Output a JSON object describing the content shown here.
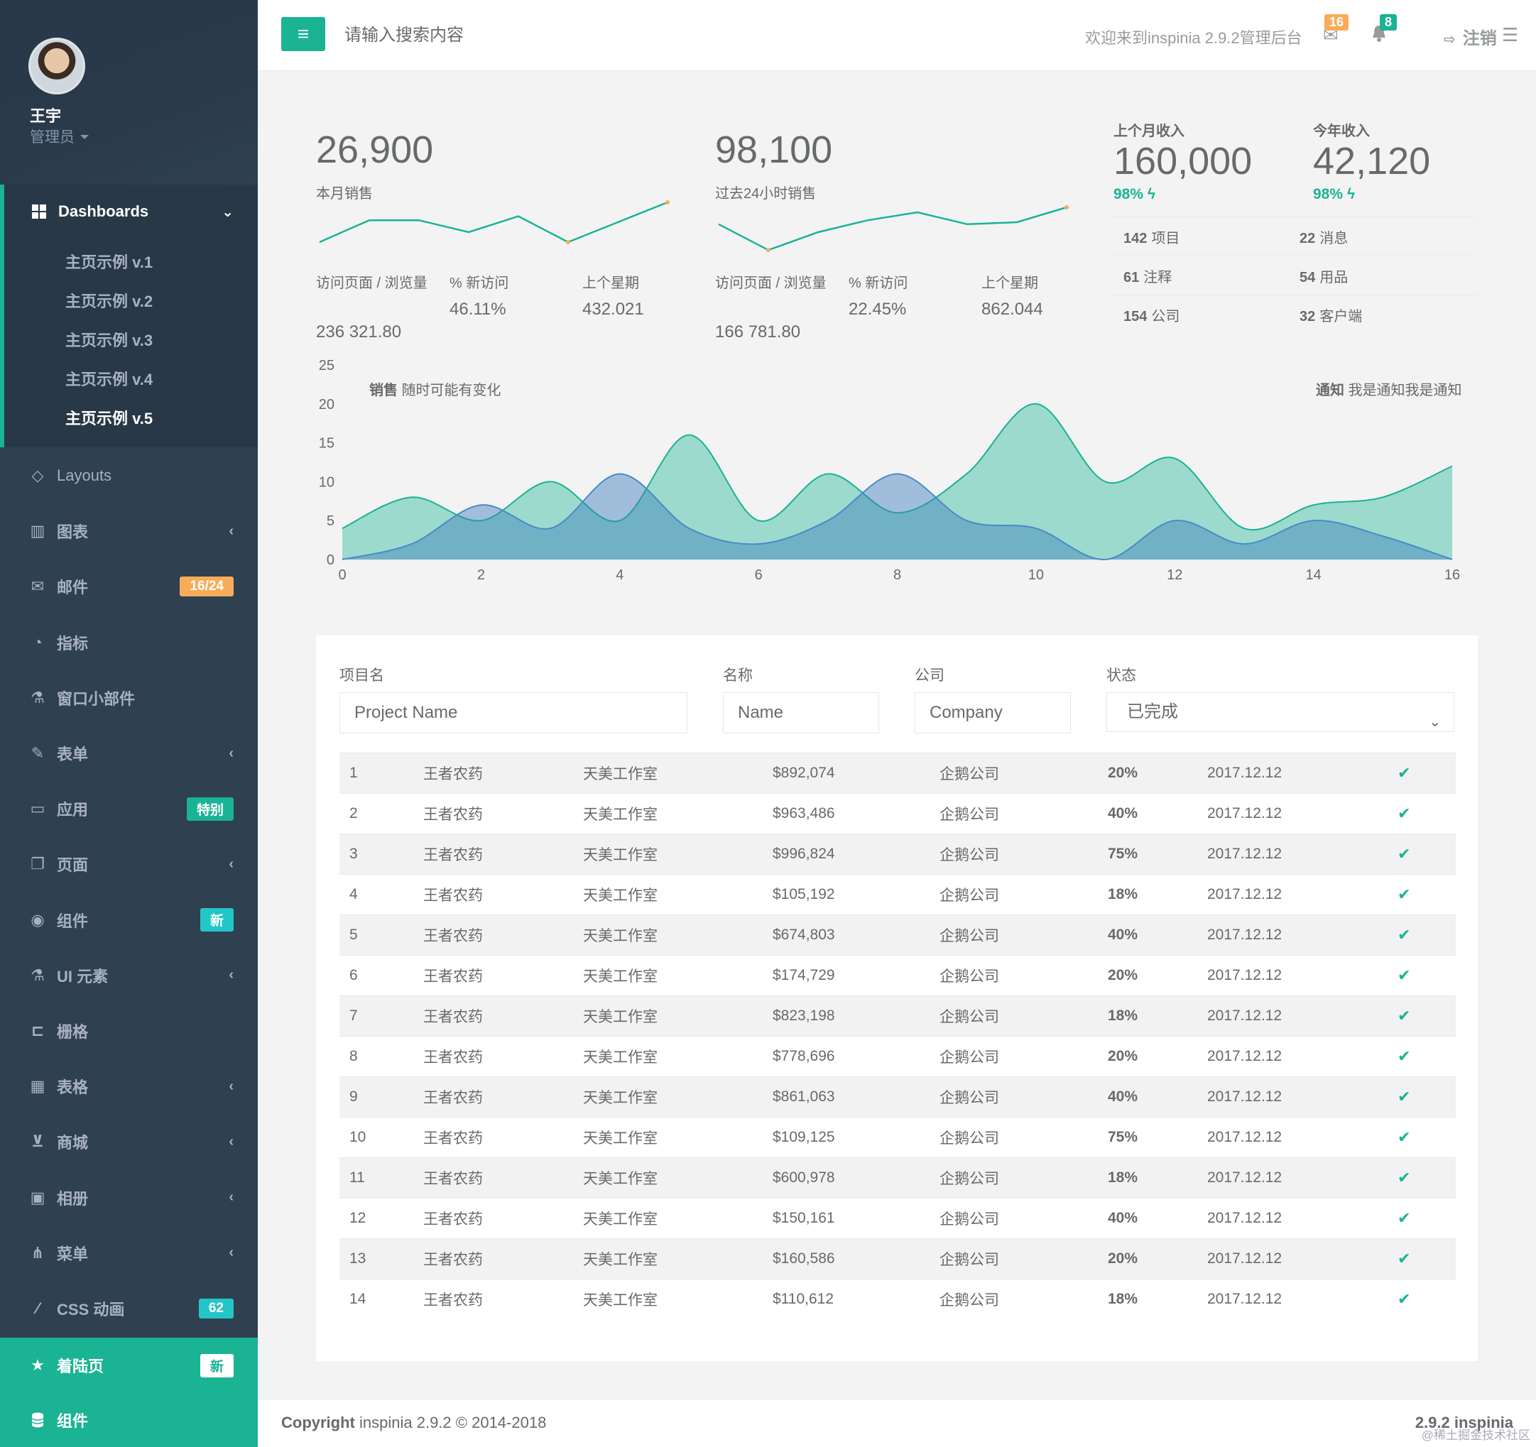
{
  "user": {
    "name": "王宇",
    "role": "管理员"
  },
  "nav": {
    "dashboards": "Dashboards",
    "sub_items": [
      "主页示例 v.1",
      "主页示例 v.2",
      "主页示例 v.3",
      "主页示例 v.4",
      "主页示例 v.5"
    ],
    "items": [
      {
        "label": "Layouts",
        "icon": "diamond-icon",
        "chevron": false,
        "badge": ""
      },
      {
        "label": "图表",
        "icon": "bar-chart-icon",
        "chevron": true,
        "badge": ""
      },
      {
        "label": "邮件",
        "icon": "envelope-icon",
        "chevron": false,
        "badge": "16/24",
        "badge_color": "#f8ac59"
      },
      {
        "label": "指标",
        "icon": "pie-chart-icon",
        "chevron": false,
        "badge": ""
      },
      {
        "label": "窗口小部件",
        "icon": "flask-icon",
        "chevron": false,
        "badge": ""
      },
      {
        "label": "表单",
        "icon": "edit-icon",
        "chevron": true,
        "badge": ""
      },
      {
        "label": "应用",
        "icon": "desktop-icon",
        "chevron": false,
        "badge": "特别",
        "badge_color": "#1ab394"
      },
      {
        "label": "页面",
        "icon": "files-icon",
        "chevron": true,
        "badge": ""
      },
      {
        "label": "组件",
        "icon": "globe-icon",
        "chevron": false,
        "badge": "新",
        "badge_color": "#23c6c8"
      },
      {
        "label": "UI 元素",
        "icon": "flask-icon",
        "chevron": true,
        "badge": ""
      },
      {
        "label": "栅格",
        "icon": "laptop-icon",
        "chevron": false,
        "badge": ""
      },
      {
        "label": "表格",
        "icon": "table-icon",
        "chevron": true,
        "badge": ""
      },
      {
        "label": "商城",
        "icon": "cart-icon",
        "chevron": true,
        "badge": ""
      },
      {
        "label": "相册",
        "icon": "picture-icon",
        "chevron": true,
        "badge": ""
      },
      {
        "label": "菜单",
        "icon": "sitemap-icon",
        "chevron": true,
        "badge": ""
      },
      {
        "label": "CSS 动画",
        "icon": "magic-icon",
        "chevron": false,
        "badge": "62",
        "badge_color": "#23c6c8"
      }
    ],
    "landing": {
      "label": "着陆页",
      "badge": "新"
    },
    "bottom": {
      "label": "组件"
    }
  },
  "topbar": {
    "search_placeholder": "请输入搜索内容",
    "welcome": "欢迎来到inspinia 2.9.2管理后台",
    "mail_count": "16",
    "alert_count": "8",
    "logout": "注销"
  },
  "stats": [
    {
      "value": "26,900",
      "label": "本月销售",
      "pv_label": "访问页面 / 浏览量",
      "pv": "236 321.80",
      "new_label": "% 新访问",
      "new": "46.11%",
      "last_label": "上个星期",
      "last": "432.021"
    },
    {
      "value": "98,100",
      "label": "过去24小时销售",
      "pv_label": "访问页面 / 浏览量",
      "pv": "166 781.80",
      "new_label": "% 新访问",
      "new": "22.45%",
      "last_label": "上个星期",
      "last": "862.044"
    }
  ],
  "income": {
    "last_month_label": "上个月收入",
    "last_month": "160,000",
    "last_month_pct": "98%",
    "year_label": "今年收入",
    "year": "42,120",
    "year_pct": "98%",
    "list": [
      {
        "num": "142",
        "label": "项目"
      },
      {
        "num": "22",
        "label": "消息"
      },
      {
        "num": "61",
        "label": "注释"
      },
      {
        "num": "54",
        "label": "用品"
      },
      {
        "num": "154",
        "label": "公司"
      },
      {
        "num": "32",
        "label": "客户端"
      }
    ]
  },
  "chart_data": {
    "type": "area",
    "title_left_bold": "销售",
    "title_left": "随时可能有变化",
    "title_right_bold": "通知",
    "title_right": "我是通知我是通知",
    "xlim": [
      0,
      16
    ],
    "ylim": [
      0,
      25
    ],
    "x_ticks": [
      0,
      2,
      4,
      6,
      8,
      10,
      12,
      14,
      16
    ],
    "y_ticks": [
      0,
      5,
      10,
      15,
      20,
      25
    ],
    "colors": {
      "series1": "#1ab394",
      "series2": "#5a9ad4"
    },
    "series": [
      {
        "x": [
          0,
          1,
          2,
          3,
          4,
          5,
          6,
          7,
          8,
          9,
          10,
          11,
          12,
          13,
          14,
          15,
          16
        ],
        "values": [
          4,
          8,
          5,
          10,
          5,
          16,
          5,
          11,
          6,
          11,
          20,
          10,
          13,
          4,
          7,
          8,
          12
        ]
      },
      {
        "x": [
          0,
          1,
          2,
          3,
          4,
          5,
          6,
          7,
          8,
          9,
          10,
          11,
          12,
          13,
          14,
          15,
          16
        ],
        "values": [
          0,
          2,
          7,
          4,
          11,
          4,
          2,
          5,
          11,
          5,
          4,
          0,
          5,
          2,
          5,
          3,
          0
        ]
      }
    ]
  },
  "sparklines": [
    [
      40,
      18,
      18,
      30,
      14,
      40,
      20,
      0
    ],
    [
      22,
      48,
      30,
      18,
      10,
      22,
      20,
      5
    ]
  ],
  "form": {
    "project_label": "项目名",
    "project_placeholder": "Project Name",
    "name_label": "名称",
    "name_placeholder": "Name",
    "company_label": "公司",
    "company_placeholder": "Company",
    "status_label": "状态",
    "status_value": "已完成"
  },
  "table": {
    "rows": [
      [
        "1",
        "王者农药",
        "天美工作室",
        "$892,074",
        "企鹅公司",
        "20%",
        "2017.12.12"
      ],
      [
        "2",
        "王者农药",
        "天美工作室",
        "$963,486",
        "企鹅公司",
        "40%",
        "2017.12.12"
      ],
      [
        "3",
        "王者农药",
        "天美工作室",
        "$996,824",
        "企鹅公司",
        "75%",
        "2017.12.12"
      ],
      [
        "4",
        "王者农药",
        "天美工作室",
        "$105,192",
        "企鹅公司",
        "18%",
        "2017.12.12"
      ],
      [
        "5",
        "王者农药",
        "天美工作室",
        "$674,803",
        "企鹅公司",
        "40%",
        "2017.12.12"
      ],
      [
        "6",
        "王者农药",
        "天美工作室",
        "$174,729",
        "企鹅公司",
        "20%",
        "2017.12.12"
      ],
      [
        "7",
        "王者农药",
        "天美工作室",
        "$823,198",
        "企鹅公司",
        "18%",
        "2017.12.12"
      ],
      [
        "8",
        "王者农药",
        "天美工作室",
        "$778,696",
        "企鹅公司",
        "20%",
        "2017.12.12"
      ],
      [
        "9",
        "王者农药",
        "天美工作室",
        "$861,063",
        "企鹅公司",
        "40%",
        "2017.12.12"
      ],
      [
        "10",
        "王者农药",
        "天美工作室",
        "$109,125",
        "企鹅公司",
        "75%",
        "2017.12.12"
      ],
      [
        "11",
        "王者农药",
        "天美工作室",
        "$600,978",
        "企鹅公司",
        "18%",
        "2017.12.12"
      ],
      [
        "12",
        "王者农药",
        "天美工作室",
        "$150,161",
        "企鹅公司",
        "40%",
        "2017.12.12"
      ],
      [
        "13",
        "王者农药",
        "天美工作室",
        "$160,586",
        "企鹅公司",
        "20%",
        "2017.12.12"
      ],
      [
        "14",
        "王者农药",
        "天美工作室",
        "$110,612",
        "企鹅公司",
        "18%",
        "2017.12.12"
      ]
    ]
  },
  "footer": {
    "copyright_bold": "Copyright",
    "copyright": "inspinia 2.9.2 © 2014-2018",
    "version": "2.9.2 inspinia",
    "watermark": "@稀土掘金技术社区"
  }
}
